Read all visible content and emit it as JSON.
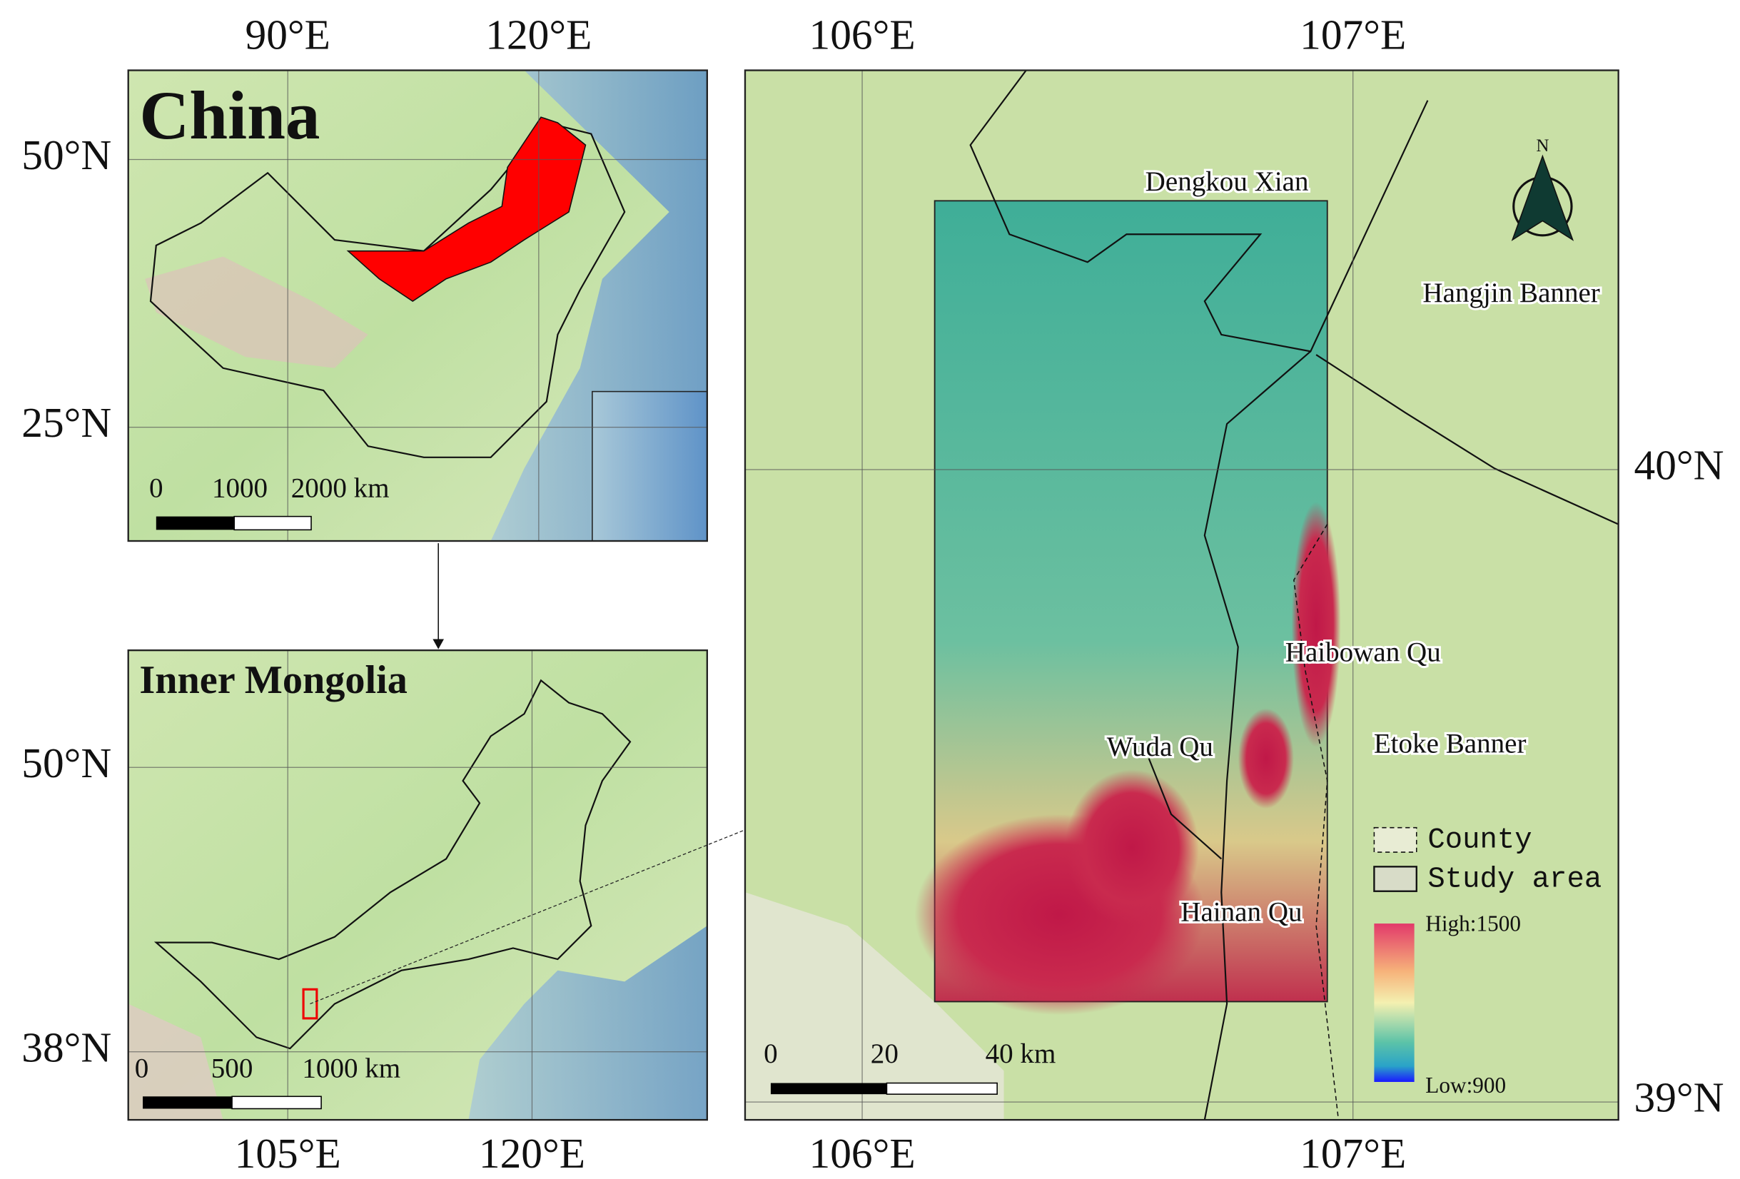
{
  "panels": [
    {
      "title": "China",
      "top_ticks": [
        "90°E",
        "120°E"
      ],
      "left_ticks": [
        "50°N",
        "25°N"
      ],
      "scale_labels": [
        "0",
        "1000",
        "2000 km"
      ]
    },
    {
      "title": "Inner Mongolia",
      "bottom_ticks": [
        "105°E",
        "120°E"
      ],
      "left_ticks": [
        "50°N",
        "38°N"
      ],
      "scale_labels": [
        "0",
        "500",
        "1000 km"
      ]
    },
    {
      "top_ticks": [
        "106°E",
        "107°E"
      ],
      "bottom_ticks": [
        "106°E",
        "107°E"
      ],
      "right_ticks": [
        "40°N",
        "39°N"
      ],
      "scale_labels": [
        "0",
        "20",
        "40 km"
      ],
      "places": [
        "Dengkou Xian",
        "Hangjin Banner",
        "Haibowan Qu",
        "Etoke Banner",
        "Wuda Qu",
        "Hainan Qu"
      ],
      "north": "N",
      "legend": [
        "County",
        "Study area"
      ],
      "colorbar": {
        "high": "High:1500",
        "low": "Low:900"
      }
    }
  ]
}
